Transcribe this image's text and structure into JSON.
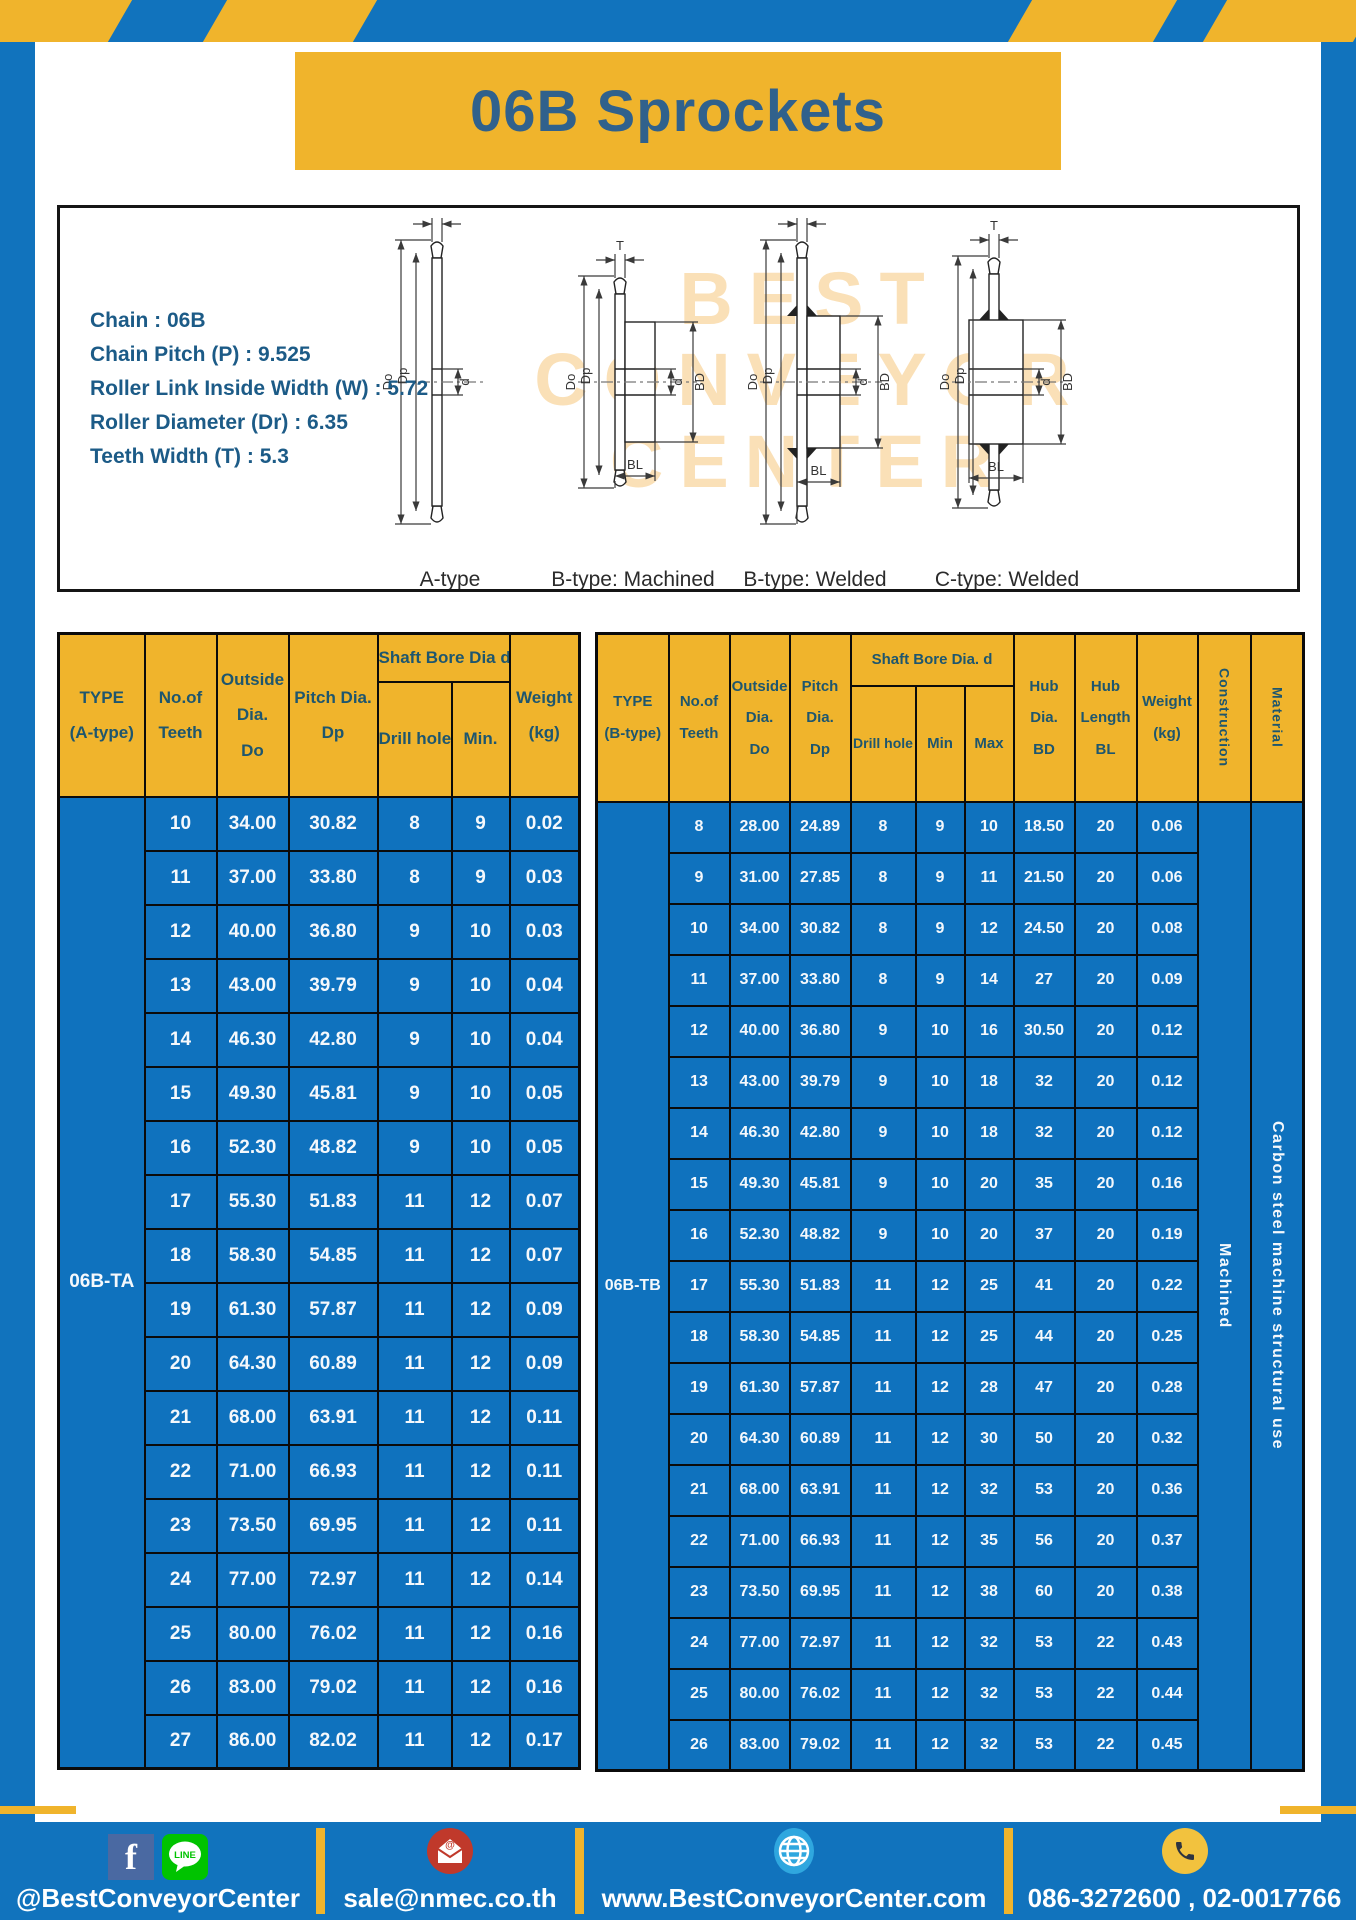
{
  "page": {
    "title": "06B Sprockets"
  },
  "colors": {
    "blue": "#0F72BE",
    "frame_blue": "#1173BD",
    "yellow": "#F0B42C",
    "header_text": "#1E566E",
    "spec_text": "#1C5B87"
  },
  "specs": {
    "lines": [
      "Chain  : 06B",
      "Chain Pitch (P)  :  9.525",
      "Roller Link Inside Width (W)  :  5.72",
      "Roller Diameter (Dr)  : 6.35",
      "Teeth Width (T)  :  5.3"
    ]
  },
  "diagram": {
    "watermark_lines": [
      "BEST",
      "CONVEYOR",
      "CENTER"
    ],
    "captions": [
      "A-type",
      "B-type: Machined",
      "B-type: Welded",
      "C-type: Welded"
    ],
    "dim_labels": {
      "t": "T",
      "do": "Do",
      "dp": "Dp",
      "d": "d",
      "bd": "BD",
      "bl": "BL"
    }
  },
  "table_a": {
    "header": {
      "type": [
        "TYPE",
        "(A-type)"
      ],
      "teeth": [
        "No.of",
        "Teeth"
      ],
      "outside": [
        "Outside",
        "Dia.",
        "Do"
      ],
      "pitch": [
        "Pitch Dia.",
        "Dp"
      ],
      "bore_group": "Shaft Bore Dia d",
      "drill": "Drill hole",
      "min": "Min.",
      "weight": [
        "Weight",
        "(kg)"
      ]
    },
    "type_label": "06B-TA",
    "rows": [
      [
        "10",
        "34.00",
        "30.82",
        "8",
        "9",
        "0.02"
      ],
      [
        "11",
        "37.00",
        "33.80",
        "8",
        "9",
        "0.03"
      ],
      [
        "12",
        "40.00",
        "36.80",
        "9",
        "10",
        "0.03"
      ],
      [
        "13",
        "43.00",
        "39.79",
        "9",
        "10",
        "0.04"
      ],
      [
        "14",
        "46.30",
        "42.80",
        "9",
        "10",
        "0.04"
      ],
      [
        "15",
        "49.30",
        "45.81",
        "9",
        "10",
        "0.05"
      ],
      [
        "16",
        "52.30",
        "48.82",
        "9",
        "10",
        "0.05"
      ],
      [
        "17",
        "55.30",
        "51.83",
        "11",
        "12",
        "0.07"
      ],
      [
        "18",
        "58.30",
        "54.85",
        "11",
        "12",
        "0.07"
      ],
      [
        "19",
        "61.30",
        "57.87",
        "11",
        "12",
        "0.09"
      ],
      [
        "20",
        "64.30",
        "60.89",
        "11",
        "12",
        "0.09"
      ],
      [
        "21",
        "68.00",
        "63.91",
        "11",
        "12",
        "0.11"
      ],
      [
        "22",
        "71.00",
        "66.93",
        "11",
        "12",
        "0.11"
      ],
      [
        "23",
        "73.50",
        "69.95",
        "11",
        "12",
        "0.11"
      ],
      [
        "24",
        "77.00",
        "72.97",
        "11",
        "12",
        "0.14"
      ],
      [
        "25",
        "80.00",
        "76.02",
        "11",
        "12",
        "0.16"
      ],
      [
        "26",
        "83.00",
        "79.02",
        "11",
        "12",
        "0.16"
      ],
      [
        "27",
        "86.00",
        "82.02",
        "11",
        "12",
        "0.17"
      ]
    ]
  },
  "table_b": {
    "header": {
      "type": [
        "TYPE",
        "(B-type)"
      ],
      "teeth": [
        "No.of",
        "Teeth"
      ],
      "outside": [
        "Outside",
        "Dia.",
        "Do"
      ],
      "pitch": [
        "Pitch",
        "Dia.",
        "Dp"
      ],
      "bore_group": "Shaft Bore Dia.  d",
      "drill": "Drill hole",
      "min": "Min",
      "max": "Max",
      "hub_dia": [
        "Hub",
        "Dia.",
        "BD"
      ],
      "hub_len": [
        "Hub",
        "Length",
        "BL"
      ],
      "weight": [
        "Weight",
        "(kg)"
      ],
      "construction": "Construction",
      "material": "Material"
    },
    "type_label": "06B-TB",
    "construction_value": "Machined",
    "material_value": "Carbon  steel  machine  structural  use",
    "rows": [
      [
        "8",
        "28.00",
        "24.89",
        "8",
        "9",
        "10",
        "18.50",
        "20",
        "0.06"
      ],
      [
        "9",
        "31.00",
        "27.85",
        "8",
        "9",
        "11",
        "21.50",
        "20",
        "0.06"
      ],
      [
        "10",
        "34.00",
        "30.82",
        "8",
        "9",
        "12",
        "24.50",
        "20",
        "0.08"
      ],
      [
        "11",
        "37.00",
        "33.80",
        "8",
        "9",
        "14",
        "27",
        "20",
        "0.09"
      ],
      [
        "12",
        "40.00",
        "36.80",
        "9",
        "10",
        "16",
        "30.50",
        "20",
        "0.12"
      ],
      [
        "13",
        "43.00",
        "39.79",
        "9",
        "10",
        "18",
        "32",
        "20",
        "0.12"
      ],
      [
        "14",
        "46.30",
        "42.80",
        "9",
        "10",
        "18",
        "32",
        "20",
        "0.12"
      ],
      [
        "15",
        "49.30",
        "45.81",
        "9",
        "10",
        "20",
        "35",
        "20",
        "0.16"
      ],
      [
        "16",
        "52.30",
        "48.82",
        "9",
        "10",
        "20",
        "37",
        "20",
        "0.19"
      ],
      [
        "17",
        "55.30",
        "51.83",
        "11",
        "12",
        "25",
        "41",
        "20",
        "0.22"
      ],
      [
        "18",
        "58.30",
        "54.85",
        "11",
        "12",
        "25",
        "44",
        "20",
        "0.25"
      ],
      [
        "19",
        "61.30",
        "57.87",
        "11",
        "12",
        "28",
        "47",
        "20",
        "0.28"
      ],
      [
        "20",
        "64.30",
        "60.89",
        "11",
        "12",
        "30",
        "50",
        "20",
        "0.32"
      ],
      [
        "21",
        "68.00",
        "63.91",
        "11",
        "12",
        "32",
        "53",
        "20",
        "0.36"
      ],
      [
        "22",
        "71.00",
        "66.93",
        "11",
        "12",
        "35",
        "56",
        "20",
        "0.37"
      ],
      [
        "23",
        "73.50",
        "69.95",
        "11",
        "12",
        "38",
        "60",
        "20",
        "0.38"
      ],
      [
        "24",
        "77.00",
        "72.97",
        "11",
        "12",
        "32",
        "53",
        "22",
        "0.43"
      ],
      [
        "25",
        "80.00",
        "76.02",
        "11",
        "12",
        "32",
        "53",
        "22",
        "0.44"
      ],
      [
        "26",
        "83.00",
        "79.02",
        "11",
        "12",
        "32",
        "53",
        "22",
        "0.45"
      ]
    ]
  },
  "footer": {
    "social": "@BestConveyorCenter",
    "line_label": "LINE",
    "fb_letter": "f",
    "email": "sale@nmec.co.th",
    "web": "www.BestConveyorCenter.com",
    "phone": "086-3272600 , 02-0017766"
  }
}
